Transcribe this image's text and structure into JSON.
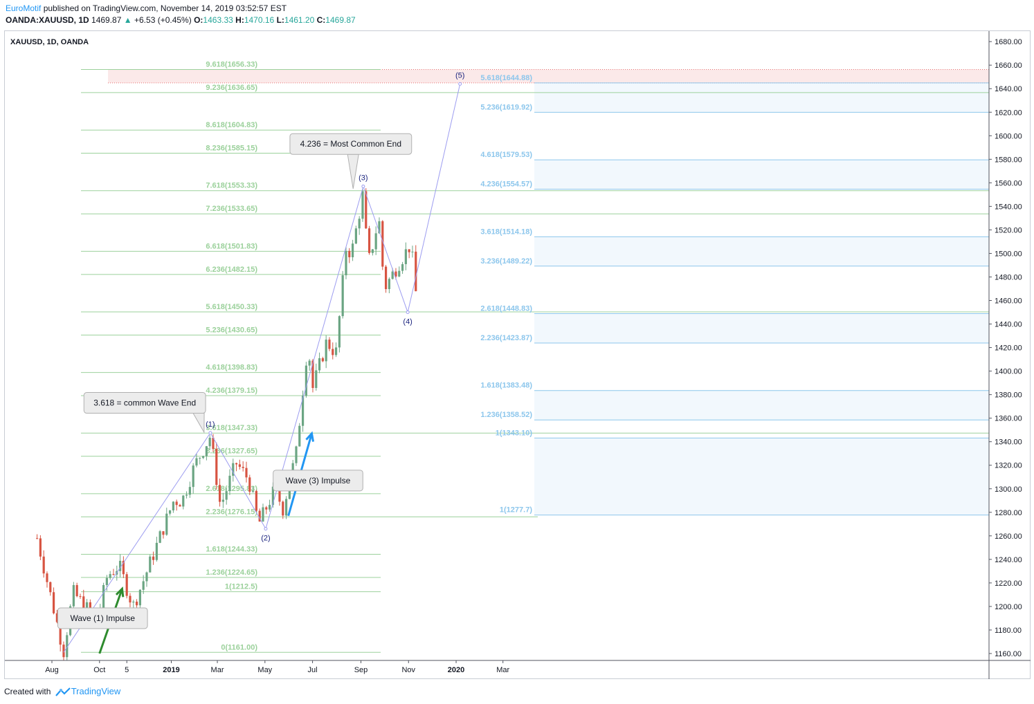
{
  "header": {
    "author": "EuroMotif",
    "published_text": " published on TradingView.com, November 14, 2019 03:52:57 EST",
    "symbol": "OANDA:XAUUSD, 1D",
    "last": "1469.87",
    "change": "+6.53 (+0.45%)",
    "o_label": "O:",
    "o_value": "1463.33",
    "h_label": "H:",
    "h_value": "1470.16",
    "l_label": "L:",
    "l_value": "1461.20",
    "c_label": "C:",
    "c_value": "1469.87"
  },
  "chart_title": "XAUUSD, 1D, OANDA",
  "footer": {
    "created_with": "Created with",
    "brand": "TradingView"
  },
  "colors": {
    "up": "#6ba583",
    "down": "#d75442",
    "fib_green": "#9bd19b",
    "fib_blue": "#8cc6ec",
    "wave_line": "#9c9cf0",
    "green_arrow": "#2e8b2e",
    "blue_arrow": "#2196f3",
    "zone_red": "#f6cfcf"
  },
  "chart_data": {
    "type": "candlestick",
    "symbol": "XAUUSD",
    "timeframe": "1D",
    "ylim": [
      1150,
      1690
    ],
    "y_ticks": [
      1160,
      1180,
      1200,
      1220,
      1240,
      1260,
      1280,
      1300,
      1320,
      1340,
      1360,
      1380,
      1400,
      1420,
      1440,
      1460,
      1480,
      1500,
      1520,
      1540,
      1560,
      1580,
      1600,
      1620,
      1640,
      1660,
      1680
    ],
    "x_ticks": [
      "Aug",
      "Oct",
      "5",
      "2019",
      "Mar",
      "May",
      "Jul",
      "Sep",
      "Nov",
      "2020",
      "Mar"
    ],
    "price_anchors": [
      [
        "2018-07-13",
        1258
      ],
      [
        "2018-08-16",
        1162
      ],
      [
        "2018-08-28",
        1212
      ],
      [
        "2018-09-28",
        1188
      ],
      [
        "2018-10-11",
        1226
      ],
      [
        "2018-10-26",
        1235
      ],
      [
        "2018-11-13",
        1200
      ],
      [
        "2018-11-28",
        1225
      ],
      [
        "2019-01-04",
        1290
      ],
      [
        "2019-01-15",
        1290
      ],
      [
        "2019-01-31",
        1320
      ],
      [
        "2019-02-20",
        1345
      ],
      [
        "2019-03-05",
        1285
      ],
      [
        "2019-03-25",
        1322
      ],
      [
        "2019-04-10",
        1308
      ],
      [
        "2019-04-23",
        1270
      ],
      [
        "2019-05-14",
        1300
      ],
      [
        "2019-05-24",
        1283
      ],
      [
        "2019-06-10",
        1330
      ],
      [
        "2019-06-25",
        1425
      ],
      [
        "2019-07-01",
        1385
      ],
      [
        "2019-07-19",
        1425
      ],
      [
        "2019-07-31",
        1415
      ],
      [
        "2019-08-13",
        1505
      ],
      [
        "2019-08-20",
        1500
      ],
      [
        "2019-09-04",
        1552
      ],
      [
        "2019-09-10",
        1490
      ],
      [
        "2019-09-24",
        1530
      ],
      [
        "2019-10-01",
        1470
      ],
      [
        "2019-10-18",
        1490
      ],
      [
        "2019-11-04",
        1508
      ],
      [
        "2019-11-12",
        1456
      ],
      [
        "2019-11-14",
        1470
      ]
    ],
    "fib_left": {
      "levels": [
        {
          "label": "9.618(1656.33)",
          "value": 1656.33
        },
        {
          "label": "9.236(1636.65)",
          "value": 1636.65
        },
        {
          "label": "8.618(1604.83)",
          "value": 1604.83
        },
        {
          "label": "8.236(1585.15)",
          "value": 1585.15
        },
        {
          "label": "7.618(1553.33)",
          "value": 1553.33
        },
        {
          "label": "7.236(1533.65)",
          "value": 1533.65
        },
        {
          "label": "6.618(1501.83)",
          "value": 1501.83
        },
        {
          "label": "6.236(1482.15)",
          "value": 1482.15
        },
        {
          "label": "5.618(1450.33)",
          "value": 1450.33
        },
        {
          "label": "5.236(1430.65)",
          "value": 1430.65
        },
        {
          "label": "4.618(1398.83)",
          "value": 1398.83
        },
        {
          "label": "4.236(1379.15)",
          "value": 1379.15
        },
        {
          "label": "3.618(1347.33)",
          "value": 1347.33
        },
        {
          "label": "3.236(1327.65)",
          "value": 1327.65
        },
        {
          "label": "2.618(1295.83)",
          "value": 1295.83
        },
        {
          "label": "2.236(1276.15)",
          "value": 1276.15
        },
        {
          "label": "1.618(1244.33)",
          "value": 1244.33
        },
        {
          "label": "1.236(1224.65)",
          "value": 1224.65
        },
        {
          "label": "1(1212.5)",
          "value": 1212.5
        },
        {
          "label": "0(1161.00)",
          "value": 1161.0
        }
      ]
    },
    "fib_right": {
      "levels": [
        {
          "label": "5.618(1644.88)",
          "value": 1644.88
        },
        {
          "label": "5.236(1619.92)",
          "value": 1619.92
        },
        {
          "label": "4.618(1579.53)",
          "value": 1579.53
        },
        {
          "label": "4.236(1554.57)",
          "value": 1554.57
        },
        {
          "label": "3.618(1514.18)",
          "value": 1514.18
        },
        {
          "label": "3.236(1489.22)",
          "value": 1489.22
        },
        {
          "label": "2.618(1448.83)",
          "value": 1448.83
        },
        {
          "label": "2.236(1423.87)",
          "value": 1423.87
        },
        {
          "label": "1.618(1383.48)",
          "value": 1383.48
        },
        {
          "label": "1.236(1358.52)",
          "value": 1358.52
        },
        {
          "label": "1(1343.10)",
          "value": 1343.1
        },
        {
          "label": "1(1277.7)",
          "value": 1277.7
        }
      ]
    },
    "red_zone": [
      1644.88,
      1656.33
    ],
    "waves": [
      {
        "label": "(1)",
        "date": "2019-02-20",
        "price": 1347.5
      },
      {
        "label": "(2)",
        "date": "2019-05-02",
        "price": 1266
      },
      {
        "label": "(3)",
        "date": "2019-09-04",
        "price": 1557
      },
      {
        "label": "(4)",
        "date": "2019-10-31",
        "price": 1450
      },
      {
        "label": "(5)",
        "date": "2020-01-06",
        "price": 1644
      }
    ],
    "wave_line": [
      [
        "2018-08-16",
        1161
      ],
      [
        "2019-02-20",
        1347.5
      ],
      [
        "2019-05-02",
        1266
      ],
      [
        "2019-09-04",
        1557
      ],
      [
        "2019-10-31",
        1450
      ],
      [
        "2020-01-06",
        1644
      ]
    ],
    "annotations": [
      {
        "text": "4.236 = Most Common End",
        "date": "2019-08-19",
        "price": 1593
      },
      {
        "text": "3.618 = common Wave End",
        "date": "2018-11-28",
        "price": 1373
      },
      {
        "text": "Wave (3) Impulse",
        "date": "2019-07-08",
        "price": 1307
      },
      {
        "text": "Wave (1) Impulse",
        "date": "2018-10-05",
        "price": 1190
      }
    ],
    "arrows": [
      {
        "color": "green",
        "from": [
          "2018-10-01",
          1160
        ],
        "to": [
          "2018-10-30",
          1215
        ]
      },
      {
        "color": "blue",
        "from": [
          "2019-05-31",
          1277
        ],
        "to": [
          "2019-06-30",
          1347
        ]
      }
    ]
  }
}
